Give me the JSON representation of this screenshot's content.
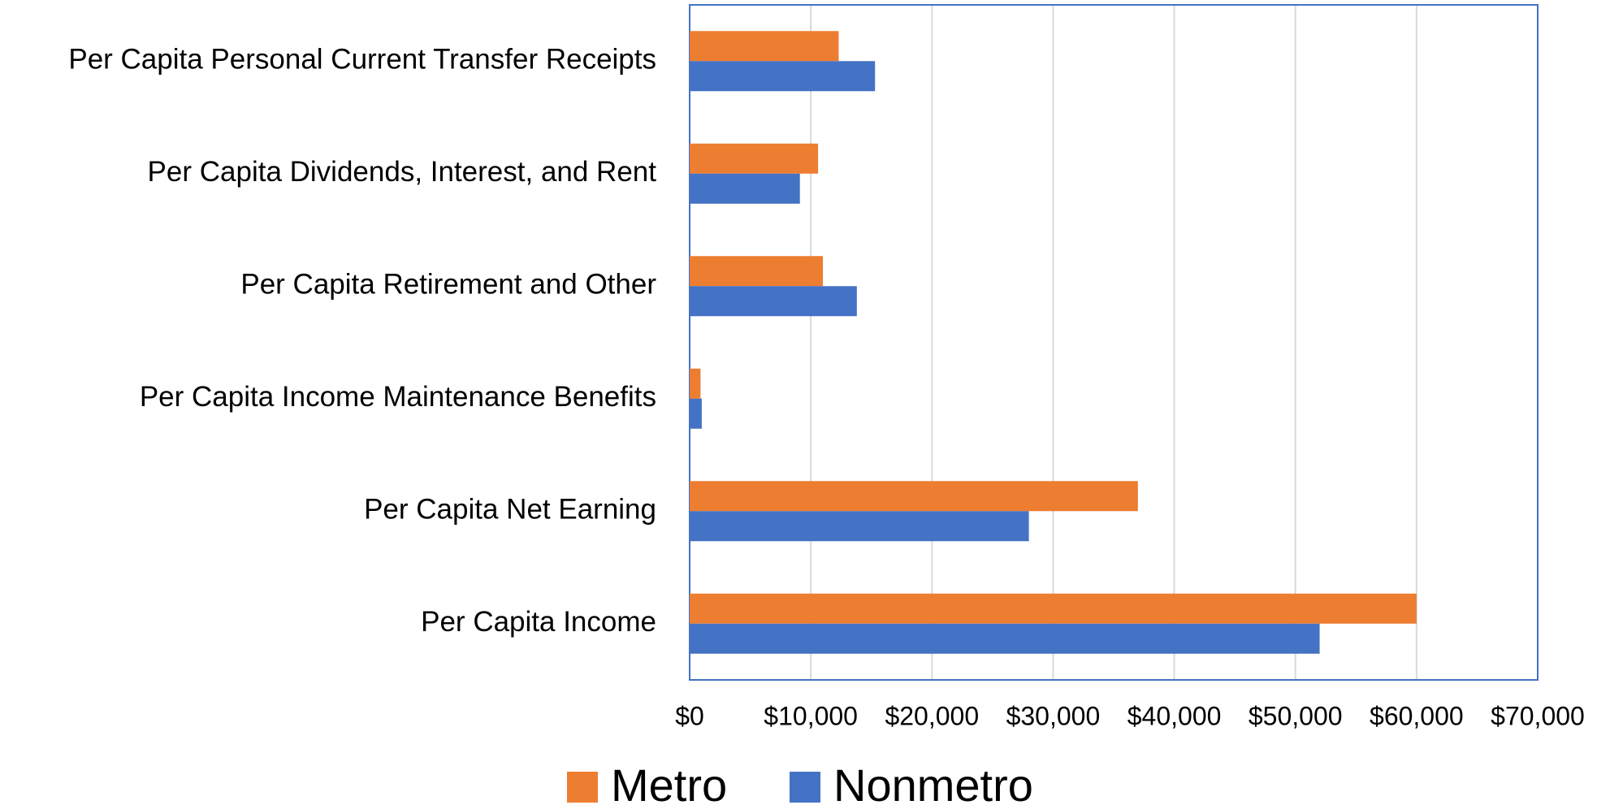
{
  "chart_data": {
    "type": "bar",
    "orientation": "horizontal",
    "categories": [
      "Per Capita Personal Current Transfer Receipts",
      "Per Capita Dividends, Interest, and Rent",
      "Per Capita Retirement and Other",
      "Per Capita Income Maintenance Benefits",
      "Per Capita Net Earning",
      "Per Capita Income"
    ],
    "series": [
      {
        "name": "Metro",
        "color": "#ed7d31",
        "values": [
          12300,
          10600,
          11000,
          900,
          37000,
          60000
        ]
      },
      {
        "name": "Nonmetro",
        "color": "#4472c4",
        "values": [
          15300,
          9100,
          13800,
          1000,
          28000,
          52000
        ]
      }
    ],
    "xlim": [
      0,
      70000
    ],
    "xticks": [
      {
        "value": 0,
        "label": "$0"
      },
      {
        "value": 10000,
        "label": "$10,000"
      },
      {
        "value": 20000,
        "label": "$20,000"
      },
      {
        "value": 30000,
        "label": "$30,000"
      },
      {
        "value": 40000,
        "label": "$40,000"
      },
      {
        "value": 50000,
        "label": "$50,000"
      },
      {
        "value": 60000,
        "label": "$60,000"
      },
      {
        "value": 70000,
        "label": "$70,000"
      }
    ],
    "grid": true,
    "legend": "bottom"
  }
}
